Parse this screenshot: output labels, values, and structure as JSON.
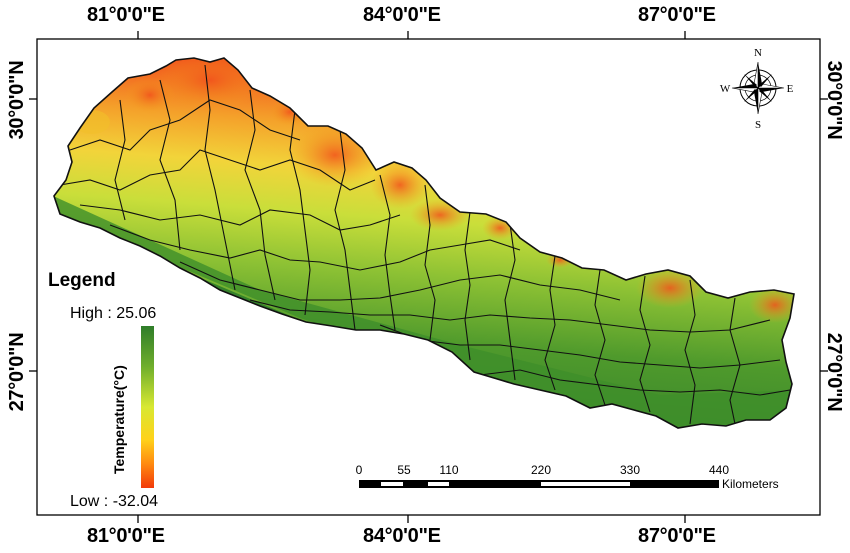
{
  "coordinates": {
    "longitudes": [
      "81°0'0\"E",
      "84°0'0\"E",
      "87°0'0\"E"
    ],
    "latitudes": [
      "30°0'0\"N",
      "27°0'0\"N"
    ]
  },
  "legend": {
    "title": "Legend",
    "high_label": "High : 25.06",
    "low_label": "Low : -32.04",
    "axis_label": "Temperature(°C)",
    "ramp_colors": [
      "#2f7d2a",
      "#6fae2c",
      "#d8e832",
      "#ffd21a",
      "#ff8a10",
      "#f23a0a"
    ]
  },
  "scale_bar": {
    "ticks": [
      "0",
      "55",
      "110",
      "220",
      "330",
      "440"
    ],
    "unit": "Kilometers"
  },
  "north_arrow": {
    "n": "N",
    "s": "S",
    "e": "E",
    "w": "W"
  },
  "colors": {
    "lowland": "#3a8a2a",
    "mid": "#9cc832",
    "high": "#f29a1c",
    "peak": "#f2521c"
  }
}
